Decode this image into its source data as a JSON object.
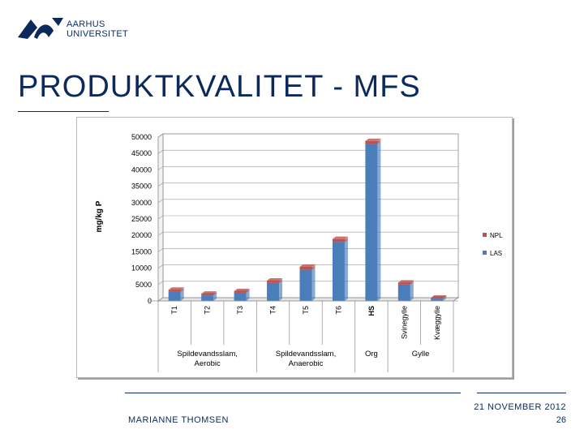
{
  "header": {
    "university_line1": "AARHUS",
    "university_line2": "UNIVERSITET",
    "title": "PRODUKTKVALITET - MFS"
  },
  "footer": {
    "author": "MARIANNE THOMSEN",
    "date": "21 NOVEMBER 2012",
    "page": "26"
  },
  "colors": {
    "brand": "#0b2a5b",
    "las": "#4a7ebb",
    "npl": "#c0504d"
  },
  "chart_data": {
    "type": "bar",
    "stacked": true,
    "categories": [
      "T1",
      "T2",
      "T3",
      "T4",
      "T5",
      "T6",
      "HS",
      "Svinegylle",
      "Kvæggylle"
    ],
    "bold_categories": [
      "HS"
    ],
    "groups": [
      {
        "label_line1": "Spildevandsslam,",
        "label_line2": "Aerobic",
        "start": 0,
        "end": 2
      },
      {
        "label_line1": "Spildevandsslam,",
        "label_line2": "Anaerobic",
        "start": 3,
        "end": 5
      },
      {
        "label_line1": "Org",
        "label_line2": "",
        "start": 6,
        "end": 6
      },
      {
        "label_line1": "Gylle",
        "label_line2": "",
        "start": 7,
        "end": 8
      }
    ],
    "series": [
      {
        "name": "LAS",
        "values": [
          2800,
          1700,
          2500,
          5500,
          9500,
          18000,
          48000,
          5000,
          700
        ]
      },
      {
        "name": "NPL",
        "values": [
          600,
          500,
          500,
          700,
          900,
          900,
          800,
          600,
          300
        ]
      }
    ],
    "ylabel": "mg/kg P",
    "ylim": [
      0,
      50000
    ],
    "yticks": [
      0,
      5000,
      10000,
      15000,
      20000,
      25000,
      30000,
      35000,
      40000,
      45000,
      50000
    ],
    "legend_order": [
      "NPL",
      "LAS"
    ],
    "legend_position": "right",
    "grid": true
  }
}
